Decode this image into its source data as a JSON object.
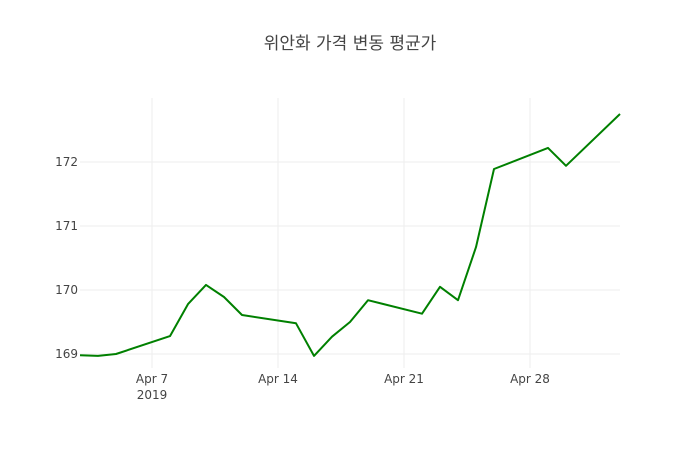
{
  "chart_data": {
    "type": "line",
    "title": "위안화 가격 변동 평균가",
    "xlabel": "",
    "ylabel": "",
    "x": [
      "2019-04-03",
      "2019-04-04",
      "2019-04-05",
      "2019-04-08",
      "2019-04-09",
      "2019-04-10",
      "2019-04-11",
      "2019-04-12",
      "2019-04-15",
      "2019-04-16",
      "2019-04-17",
      "2019-04-18",
      "2019-04-19",
      "2019-04-22",
      "2019-04-23",
      "2019-04-24",
      "2019-04-25",
      "2019-04-26",
      "2019-04-29",
      "2019-04-30",
      "2019-05-03"
    ],
    "series": [
      {
        "name": "평균가",
        "color": "#008000",
        "values": [
          168.98,
          168.97,
          169.0,
          169.28,
          169.78,
          170.08,
          169.89,
          169.61,
          169.48,
          168.97,
          169.27,
          169.5,
          169.84,
          169.63,
          170.05,
          169.84,
          170.67,
          171.89,
          172.22,
          171.94,
          172.75
        ]
      }
    ],
    "xlim": [
      "2019-04-03",
      "2019-05-03"
    ],
    "ylim": [
      168.78,
      173.0
    ],
    "x_ticks": [
      {
        "date": "2019-04-07",
        "label": "Apr 7",
        "sublabel": "2019"
      },
      {
        "date": "2019-04-14",
        "label": "Apr 14",
        "sublabel": ""
      },
      {
        "date": "2019-04-21",
        "label": "Apr 21",
        "sublabel": ""
      },
      {
        "date": "2019-04-28",
        "label": "Apr 28",
        "sublabel": ""
      }
    ],
    "y_ticks": [
      169,
      170,
      171,
      172
    ],
    "grid": true,
    "legend": "none"
  }
}
